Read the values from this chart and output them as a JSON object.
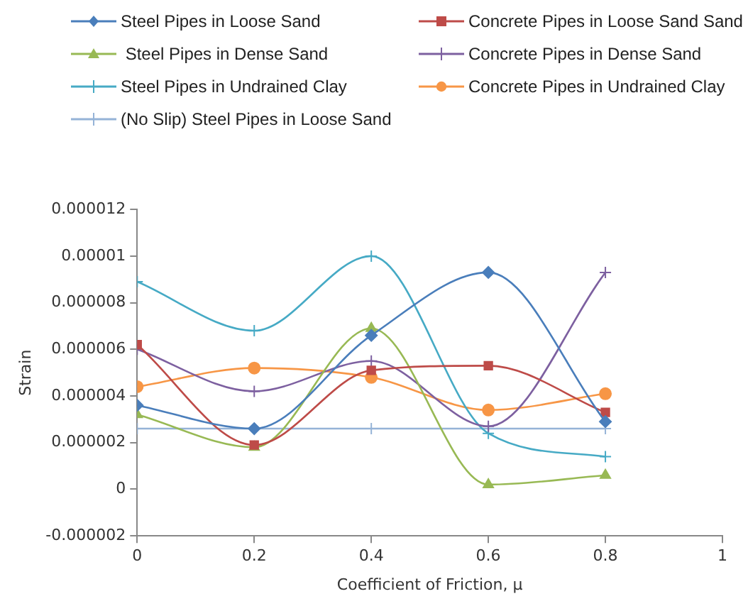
{
  "chart_data": {
    "type": "line",
    "xlabel": "Coefficient of Friction, μ",
    "ylabel": "Strain",
    "x": [
      0,
      0.2,
      0.4,
      0.6,
      0.8
    ],
    "xlim": [
      0,
      1
    ],
    "xticks": [
      0,
      0.2,
      0.4,
      0.6,
      0.8,
      1
    ],
    "ylim": [
      -2e-06,
      1.2e-05
    ],
    "yticks": [
      {
        "value": -2e-06,
        "label": "-0.000002"
      },
      0,
      {
        "value": 2e-06,
        "label": "0.000002"
      },
      {
        "value": 4e-06,
        "label": "0.000004"
      },
      {
        "value": 6e-06,
        "label": "0.000006"
      },
      {
        "value": 8e-06,
        "label": "0.000008"
      },
      {
        "value": 1e-05,
        "label": "0.00001"
      },
      {
        "value": 1.2e-05,
        "label": "0.000012"
      }
    ],
    "grid": false,
    "legend": "top",
    "series": [
      {
        "name": "Steel Pipes in Loose Sand",
        "color": "#4a7ebb",
        "marker": "diamond",
        "values": [
          3.6e-06,
          2.6e-06,
          6.6e-06,
          9.3e-06,
          2.9e-06
        ]
      },
      {
        "name": "Concrete Pipes in Loose Sand Sand",
        "color": "#be4b48",
        "marker": "square",
        "values": [
          6.2e-06,
          1.9e-06,
          5.1e-06,
          5.3e-06,
          3.3e-06
        ]
      },
      {
        "name": " Steel Pipes in Dense Sand",
        "color": "#98b954",
        "marker": "triangle",
        "values": [
          3.2e-06,
          1.8e-06,
          6.9e-06,
          2e-07,
          6e-07
        ]
      },
      {
        "name": "Concrete Pipes in Dense Sand",
        "color": "#7d60a0",
        "marker": "cross",
        "values": [
          6e-06,
          4.2e-06,
          5.5e-06,
          2.7e-06,
          9.3e-06
        ]
      },
      {
        "name": "Steel Pipes in Undrained Clay",
        "color": "#46aac5",
        "marker": "cross",
        "values": [
          8.9e-06,
          6.8e-06,
          1e-05,
          2.4e-06,
          1.4e-06
        ]
      },
      {
        "name": "Concrete Pipes in Undrained Clay",
        "color": "#f79646",
        "marker": "circle",
        "values": [
          4.4e-06,
          5.2e-06,
          4.8e-06,
          3.4e-06,
          4.1e-06
        ]
      },
      {
        "name": "(No Slip) Steel Pipes in Loose Sand",
        "color": "#95b3d7",
        "marker": "cross",
        "values": [
          2.6e-06,
          2.6e-06,
          2.6e-06,
          2.6e-06,
          2.6e-06
        ]
      }
    ]
  }
}
